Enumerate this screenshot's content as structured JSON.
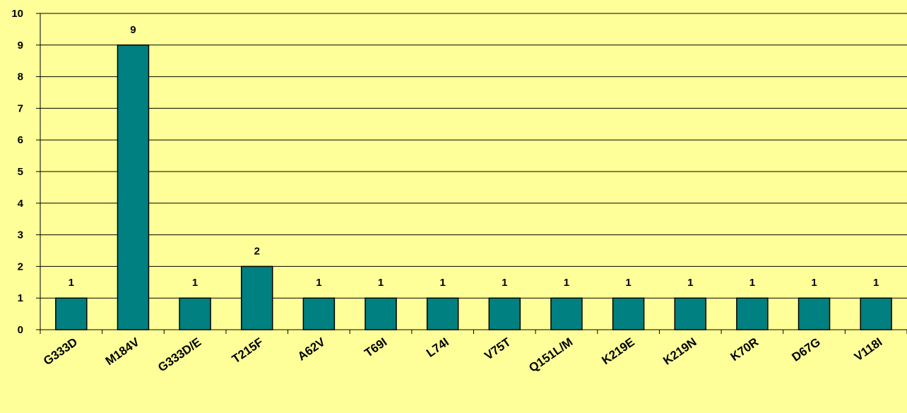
{
  "chart_data": {
    "type": "bar",
    "categories": [
      "G333D",
      "M184V",
      "G333D/E",
      "T215F",
      "A62V",
      "T69I",
      "L74I",
      "V75T",
      "Q151L/M",
      "K219E",
      "K219N",
      "K70R",
      "D67G",
      "V118I"
    ],
    "values": [
      1,
      9,
      1,
      2,
      1,
      1,
      1,
      1,
      1,
      1,
      1,
      1,
      1,
      1
    ],
    "data_labels": [
      "1",
      "9",
      "1",
      "2",
      "1",
      "1",
      "1",
      "1",
      "1",
      "1",
      "1",
      "1",
      "1",
      "1"
    ],
    "yticks": [
      "0",
      "1",
      "2",
      "3",
      "4",
      "5",
      "6",
      "7",
      "8",
      "9",
      "10"
    ],
    "ylim": [
      0,
      10
    ],
    "grid": true,
    "legend": "none",
    "colors": {
      "background": "#FFFF99",
      "bar": "#008080",
      "gridline": "#000000",
      "text": "#000000"
    }
  }
}
